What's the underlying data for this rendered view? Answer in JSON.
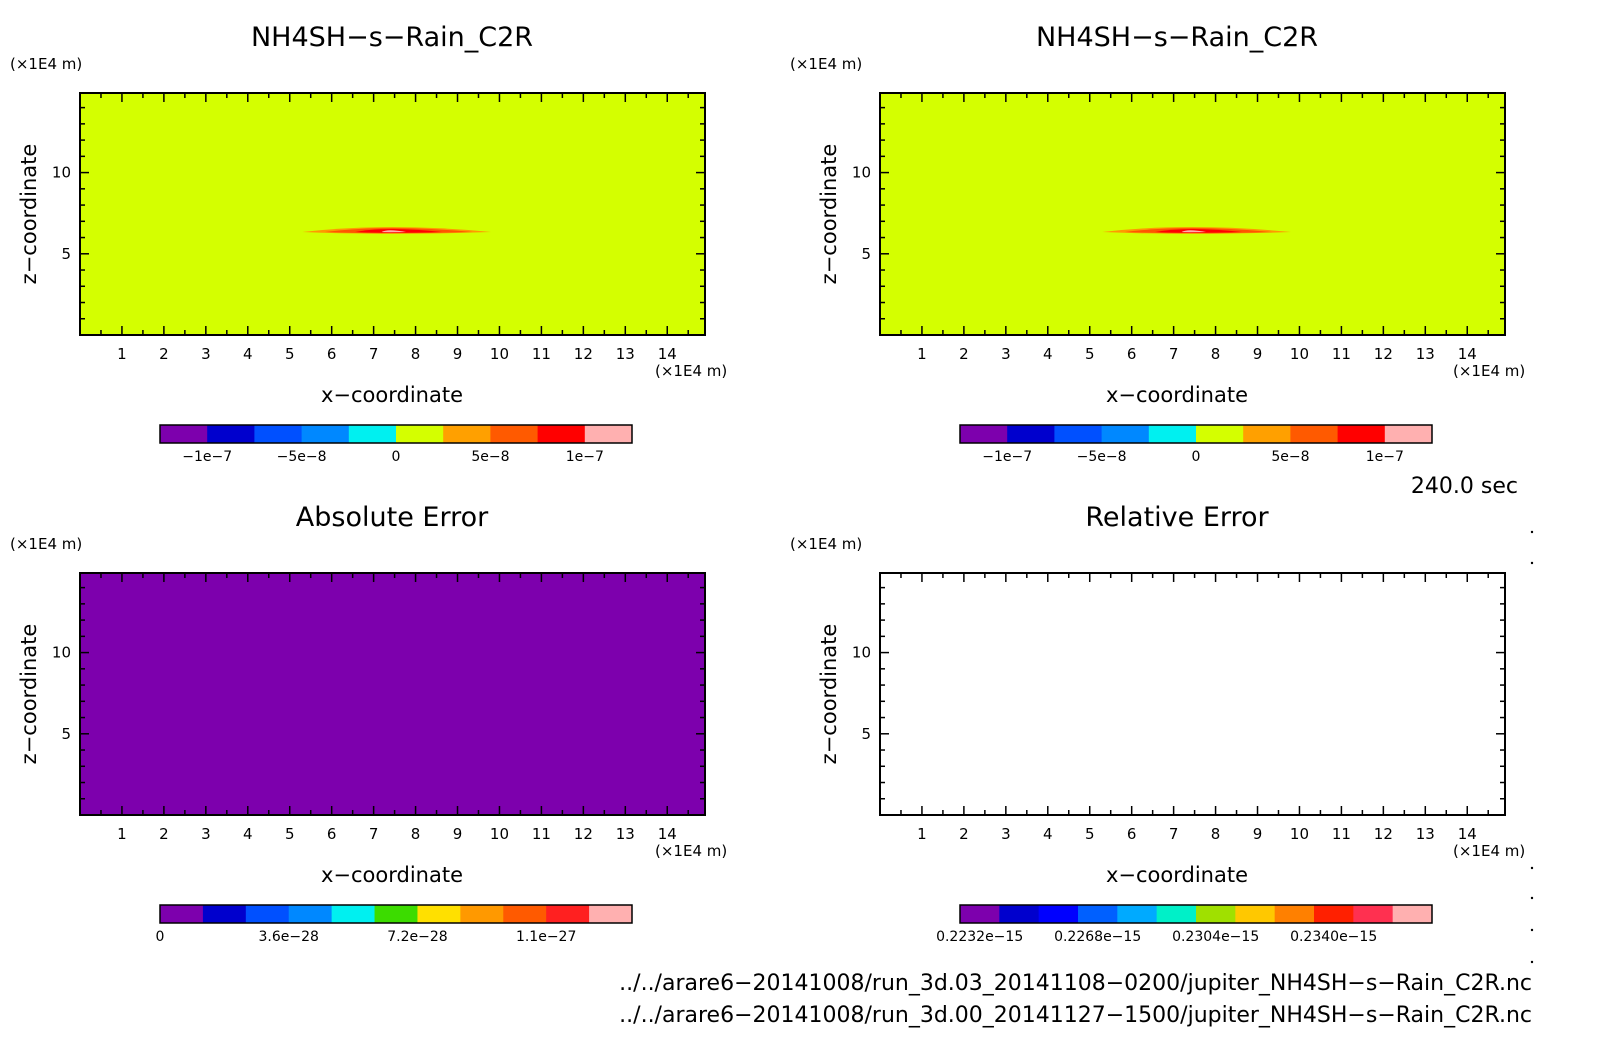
{
  "colors": {
    "field": "#d4ff00",
    "abs_error": "#7d00ad",
    "rel_error": "#ffffff",
    "blob_outer": "#ff9900",
    "blob_mid": "#ff5500",
    "blob_core": "#ff0000",
    "blob_center": "#ffb0b0"
  },
  "palette_9": [
    "#7d00ad",
    "#0000cd",
    "#0050ff",
    "#00a0ff",
    "#00f0f0",
    "#d4ff00",
    "#ffa000",
    "#ff5a00",
    "#ff0000",
    "#ffb0b0"
  ],
  "panels": [
    {
      "title": "NH4SH−s−Rain_C2R",
      "colorbar": {
        "colors": [
          "#7d00ad",
          "#0000cd",
          "#0050ff",
          "#0088ff",
          "#00f0f0",
          "#d4ff00",
          "#ffa000",
          "#ff5a00",
          "#ff0000",
          "#ffb0b0"
        ],
        "tick_labels": [
          "−1e−7",
          "−5e−8",
          "0",
          "5e−8",
          "1e−7"
        ]
      }
    },
    {
      "title": "NH4SH−s−Rain_C2R",
      "colorbar": {
        "colors": [
          "#7d00ad",
          "#0000cd",
          "#0050ff",
          "#0088ff",
          "#00f0f0",
          "#d4ff00",
          "#ffa000",
          "#ff5a00",
          "#ff0000",
          "#ffb0b0"
        ],
        "tick_labels": [
          "−1e−7",
          "−5e−8",
          "0",
          "5e−8",
          "1e−7"
        ]
      }
    },
    {
      "title": "Absolute Error",
      "colorbar": {
        "colors": [
          "#7d00ad",
          "#0000cd",
          "#0050ff",
          "#0088ff",
          "#00f0f0",
          "#3cdc00",
          "#ffe000",
          "#ff9900",
          "#ff5a00",
          "#ff2020",
          "#ffb0b0"
        ],
        "tick_labels": [
          "0",
          "3.6e−28",
          "7.2e−28",
          "1.1e−27"
        ]
      }
    },
    {
      "title": "Relative Error",
      "colorbar": {
        "colors": [
          "#7d00ad",
          "#0000cd",
          "#0000ff",
          "#0060ff",
          "#00aaff",
          "#00f0c8",
          "#a0e000",
          "#ffc800",
          "#ff8000",
          "#ff2000",
          "#ff3050",
          "#ffb0b0"
        ],
        "tick_labels": [
          "0.2232e−15",
          "0.2268e−15",
          "0.2304e−15",
          "0.2340e−15"
        ]
      }
    }
  ],
  "axes": {
    "xlabel": "x−coordinate",
    "ylabel": "z−coordinate",
    "x_unit": "(×1E4 m)",
    "y_unit": "(×1E4 m)",
    "x_ticks": [
      "1",
      "2",
      "3",
      "4",
      "5",
      "6",
      "7",
      "8",
      "9",
      "10",
      "11",
      "12",
      "13",
      "14"
    ],
    "y_ticks": [
      "5",
      "10"
    ]
  },
  "time_label": "240.0 sec",
  "footer": {
    "line1": "../../arare6−20141008/run_3d.03_20141108−0200/jupiter_NH4SH−s−Rain_C2R.nc",
    "line2": "../../arare6−20141008/run_3d.00_20141127−1500/jupiter_NH4SH−s−Rain_C2R.nc"
  },
  "chart_data": [
    {
      "type": "heatmap",
      "title": "NH4SH−s−Rain_C2R",
      "xlabel": "x−coordinate",
      "ylabel": "z−coordinate",
      "xlim": [
        0,
        14.9
      ],
      "ylim": [
        0,
        14.9
      ],
      "background_value": 0,
      "feature": {
        "x_range": [
          5.3,
          9.8
        ],
        "z_center": 6.4,
        "peak_value": 1e-07
      },
      "colorbar_ticks": [
        -1e-07,
        -5e-08,
        0,
        5e-08,
        1e-07
      ]
    },
    {
      "type": "heatmap",
      "title": "NH4SH−s−Rain_C2R",
      "xlabel": "x−coordinate",
      "ylabel": "z−coordinate",
      "xlim": [
        0,
        14.9
      ],
      "ylim": [
        0,
        14.9
      ],
      "background_value": 0,
      "feature": {
        "x_range": [
          5.3,
          9.8
        ],
        "z_center": 6.4,
        "peak_value": 1e-07
      },
      "colorbar_ticks": [
        -1e-07,
        -5e-08,
        0,
        5e-08,
        1e-07
      ]
    },
    {
      "type": "heatmap",
      "title": "Absolute Error",
      "xlabel": "x−coordinate",
      "ylabel": "z−coordinate",
      "xlim": [
        0,
        14.9
      ],
      "ylim": [
        0,
        14.9
      ],
      "background_value": 0,
      "colorbar_ticks": [
        0,
        3.6e-28,
        7.2e-28,
        1.1e-27
      ]
    },
    {
      "type": "heatmap",
      "title": "Relative Error",
      "xlabel": "x−coordinate",
      "ylabel": "z−coordinate",
      "xlim": [
        0,
        14.9
      ],
      "ylim": [
        0,
        14.9
      ],
      "background_value": null,
      "colorbar_ticks": [
        2.232e-16,
        2.268e-16,
        2.304e-16,
        2.34e-16
      ]
    }
  ]
}
